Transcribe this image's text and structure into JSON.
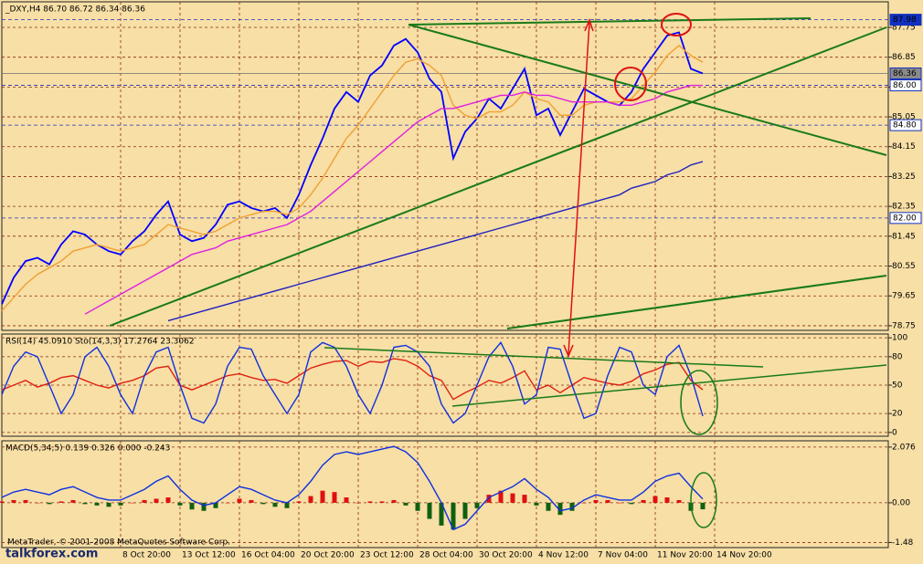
{
  "chart_data": [
    {
      "type": "line",
      "title": "_DXY,H4 86.70 86.72 86.34 86.36",
      "ylim": [
        78.61,
        88.52
      ],
      "yticks": [
        78.75,
        79.65,
        80.55,
        81.45,
        82.35,
        83.25,
        84.15,
        85.05,
        85.95,
        86.85,
        87.75
      ],
      "levels": [
        87.98,
        86.36,
        {
          "value": 86,
          "label": "86.00"
        },
        {
          "value": 84.8,
          "label": "84.80"
        },
        {
          "value": 82,
          "label": "82.00"
        }
      ],
      "grid": true,
      "series": [
        {
          "color": "#0000ff",
          "values": [
            79.4,
            80.2,
            80.7,
            80.8,
            80.6,
            81.2,
            81.6,
            81.5,
            81.2,
            81.0,
            80.9,
            81.3,
            81.6,
            82.1,
            82.5,
            81.5,
            81.3,
            81.4,
            81.8,
            82.4,
            82.5,
            82.3,
            82.2,
            82.3,
            82.0,
            82.7,
            83.6,
            84.4,
            85.3,
            85.8,
            85.5,
            86.3,
            86.6,
            87.2,
            87.4,
            87.0,
            86.2,
            85.8,
            83.8,
            84.6,
            85.0,
            85.6,
            85.3,
            85.9,
            86.5,
            85.1,
            85.3,
            84.5,
            85.2,
            85.9,
            85.7,
            85.5,
            85.4,
            85.8,
            86.5,
            87.0,
            87.5,
            87.6,
            86.5,
            86.36,
            null
          ]
        },
        {
          "color": "#f0a030",
          "values": [
            79.2,
            79.6,
            80.0,
            80.3,
            80.5,
            80.7,
            81.0,
            81.1,
            81.2,
            81.1,
            81.0,
            81.1,
            81.2,
            81.5,
            81.8,
            81.7,
            81.6,
            81.5,
            81.6,
            81.8,
            82.0,
            82.1,
            82.2,
            82.2,
            82.1,
            82.3,
            82.7,
            83.2,
            83.8,
            84.4,
            84.8,
            85.3,
            85.8,
            86.3,
            86.7,
            86.8,
            86.6,
            86.3,
            85.4,
            85.1,
            85.0,
            85.2,
            85.2,
            85.4,
            85.8,
            85.6,
            85.5,
            85.1,
            85.1,
            85.4,
            85.5,
            85.5,
            85.5,
            85.6,
            86.0,
            86.4,
            86.9,
            87.2,
            86.9,
            86.7,
            null
          ]
        },
        {
          "color": "#e020e0",
          "values": [
            null,
            null,
            null,
            null,
            null,
            null,
            null,
            79.1,
            79.3,
            79.5,
            79.7,
            79.9,
            80.1,
            80.3,
            80.5,
            80.7,
            80.9,
            81.0,
            81.1,
            81.3,
            81.4,
            81.5,
            81.6,
            81.7,
            81.8,
            82.0,
            82.2,
            82.5,
            82.8,
            83.1,
            83.4,
            83.7,
            84.0,
            84.3,
            84.6,
            84.9,
            85.1,
            85.3,
            85.3,
            85.4,
            85.5,
            85.6,
            85.7,
            85.7,
            85.8,
            85.7,
            85.7,
            85.6,
            85.5,
            85.5,
            85.5,
            85.5,
            85.4,
            85.4,
            85.5,
            85.6,
            85.8,
            85.9,
            86.0,
            86.0,
            null
          ]
        },
        {
          "color": "#2020c0",
          "values": [
            null,
            null,
            null,
            null,
            null,
            null,
            null,
            null,
            null,
            null,
            null,
            null,
            null,
            null,
            78.9,
            79.0,
            79.1,
            79.2,
            79.3,
            79.4,
            79.5,
            79.6,
            79.7,
            79.8,
            79.9,
            80.0,
            80.1,
            80.2,
            80.3,
            80.4,
            80.5,
            80.6,
            80.7,
            80.8,
            80.9,
            81.0,
            81.1,
            81.2,
            81.3,
            81.4,
            81.5,
            81.6,
            81.7,
            81.8,
            81.9,
            82.0,
            82.1,
            82.2,
            82.3,
            82.4,
            82.5,
            82.6,
            82.7,
            82.9,
            83.0,
            83.1,
            83.3,
            83.4,
            83.6,
            83.7,
            null
          ]
        }
      ],
      "annotations": [
        "MetaTrader, © 2001-2008 MetaQuotes Software Corp.",
        "talkforex.com"
      ]
    },
    {
      "type": "line",
      "title": "RSI(14) 45.0910 Sto(14,3,3) 17.2764 23.3062",
      "ylim": [
        -4,
        104
      ],
      "yticks": [
        100,
        80,
        50,
        20,
        0
      ],
      "grid": true,
      "series": [
        {
          "color": "#e02010",
          "values": [
            45,
            50,
            55,
            48,
            52,
            58,
            60,
            55,
            50,
            47,
            52,
            55,
            60,
            68,
            70,
            50,
            45,
            50,
            55,
            60,
            62,
            58,
            55,
            56,
            52,
            60,
            68,
            72,
            75,
            76,
            70,
            75,
            74,
            78,
            76,
            70,
            60,
            55,
            35,
            42,
            48,
            55,
            52,
            58,
            65,
            45,
            50,
            42,
            50,
            58,
            55,
            52,
            50,
            54,
            62,
            66,
            72,
            74,
            55,
            45.09,
            null
          ]
        },
        {
          "color": "#1030e0",
          "values": [
            40,
            70,
            85,
            80,
            50,
            20,
            40,
            80,
            90,
            70,
            40,
            20,
            60,
            85,
            90,
            50,
            15,
            10,
            30,
            70,
            90,
            88,
            60,
            40,
            20,
            40,
            85,
            95,
            90,
            70,
            40,
            20,
            50,
            90,
            92,
            85,
            70,
            30,
            10,
            20,
            50,
            80,
            95,
            70,
            30,
            40,
            90,
            88,
            50,
            15,
            20,
            60,
            90,
            85,
            50,
            40,
            80,
            92,
            60,
            17.28,
            null
          ]
        }
      ]
    },
    {
      "type": "line",
      "title": "MACD(5,34,5) 0.139 0.326 0.000 -0.243",
      "ylim": [
        -1.67,
        2.31
      ],
      "yticks": [
        2.076,
        {
          "value": 0,
          "label": "0.00"
        },
        -1.48
      ],
      "grid": true,
      "categories": [
        null,
        null,
        null,
        null,
        null,
        null,
        null,
        null,
        null,
        null,
        "8 Oct 20:00",
        null,
        null,
        null,
        null,
        "13 Oct 12:00",
        null,
        null,
        null,
        null,
        "16 Oct 04:00",
        null,
        null,
        null,
        null,
        "20 Oct 20:00",
        null,
        null,
        null,
        null,
        "23 Oct 12:00",
        null,
        null,
        null,
        null,
        "28 Oct 04:00",
        null,
        null,
        null,
        null,
        "30 Oct 20:00",
        null,
        null,
        null,
        null,
        "4 Nov 12:00",
        null,
        null,
        null,
        null,
        "7 Nov 04:00",
        null,
        null,
        null,
        null,
        "11 Nov 20:00",
        null,
        null,
        null,
        null,
        "14 Nov 20:00"
      ],
      "series": [
        {
          "type": "bar",
          "color": "#e01010",
          "negative_color": "#106010",
          "values": [
            0.05,
            0.1,
            0.1,
            0.0,
            -0.05,
            0.05,
            0.1,
            -0.05,
            -0.1,
            -0.15,
            -0.1,
            0.0,
            0.1,
            0.15,
            0.2,
            -0.1,
            -0.25,
            -0.3,
            -0.2,
            0.0,
            0.15,
            0.1,
            -0.05,
            -0.15,
            -0.2,
            0.05,
            0.25,
            0.45,
            0.4,
            0.2,
            0.0,
            0.05,
            0.05,
            0.1,
            -0.1,
            -0.3,
            -0.6,
            -0.85,
            -1.0,
            -0.6,
            -0.2,
            0.3,
            0.45,
            0.35,
            0.3,
            -0.1,
            -0.3,
            -0.45,
            -0.3,
            0.0,
            0.1,
            0.1,
            0.0,
            -0.05,
            0.1,
            0.25,
            0.2,
            0.1,
            -0.3,
            -0.243,
            null
          ]
        },
        {
          "color": "#1030e0",
          "values": [
            0.2,
            0.4,
            0.5,
            0.4,
            0.3,
            0.5,
            0.6,
            0.4,
            0.2,
            0.1,
            0.1,
            0.3,
            0.5,
            0.8,
            1.0,
            0.5,
            0.1,
            -0.1,
            0.0,
            0.3,
            0.6,
            0.5,
            0.3,
            0.1,
            0.0,
            0.3,
            0.8,
            1.4,
            1.8,
            1.9,
            1.8,
            1.9,
            2.0,
            2.1,
            1.9,
            1.5,
            0.8,
            0.0,
            -1.0,
            -0.8,
            -0.3,
            0.2,
            0.4,
            0.6,
            0.9,
            0.5,
            0.2,
            -0.3,
            -0.2,
            0.1,
            0.3,
            0.2,
            0.1,
            0.1,
            0.4,
            0.8,
            1.0,
            1.1,
            0.6,
            0.139,
            null
          ]
        }
      ]
    }
  ]
}
